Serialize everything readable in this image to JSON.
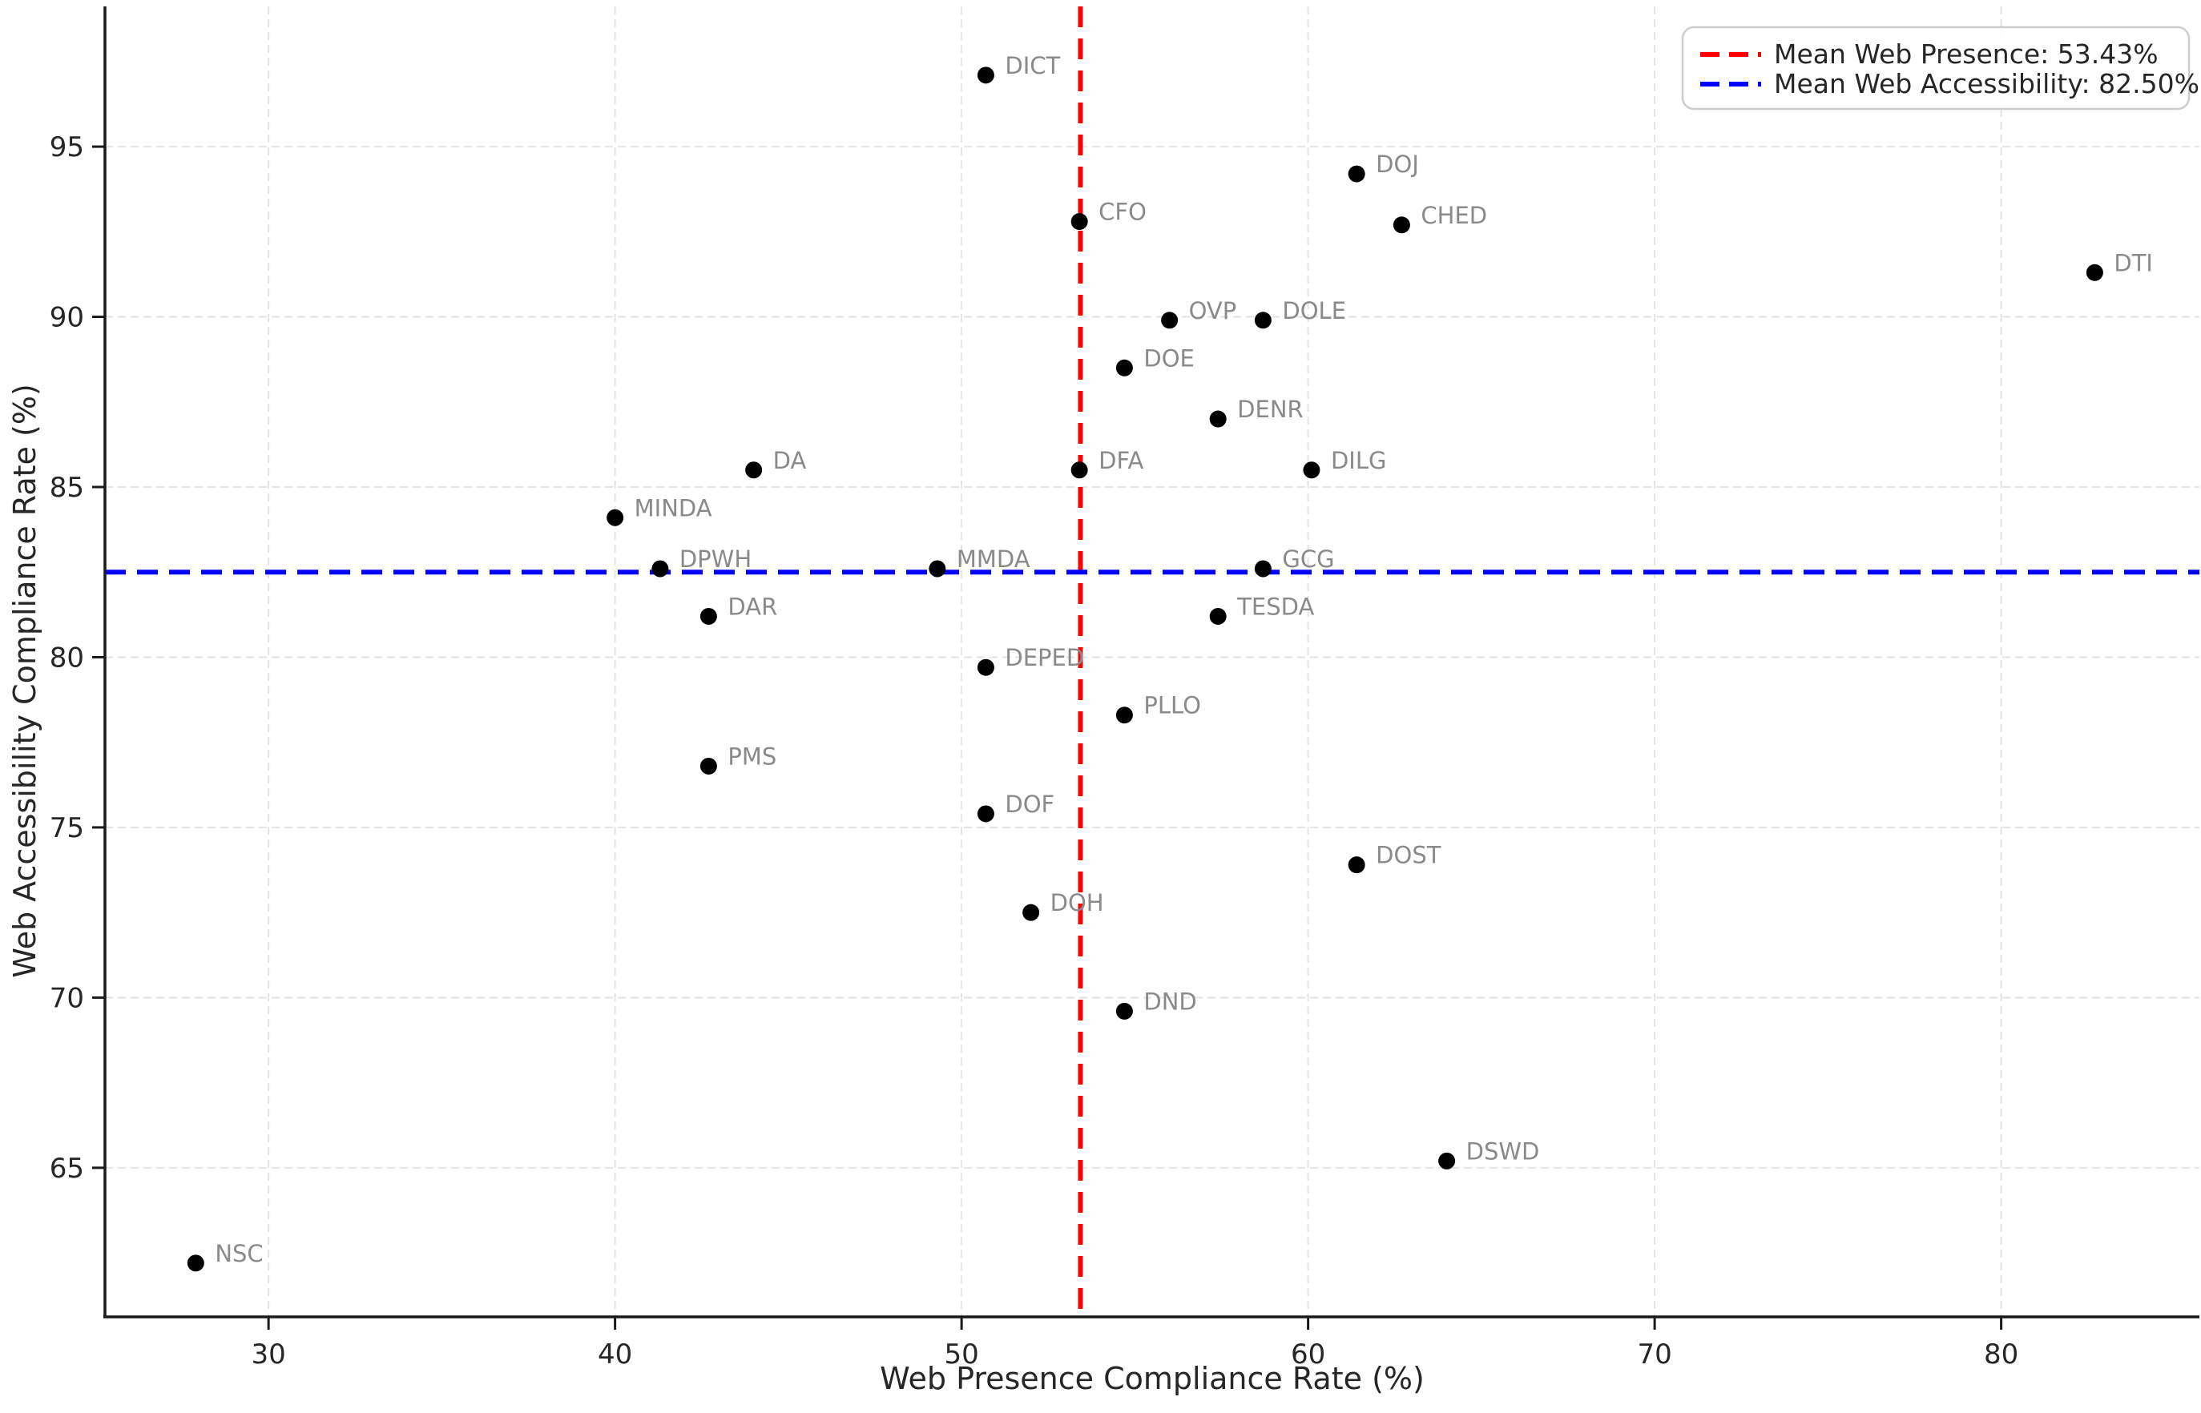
{
  "chart_data": {
    "type": "scatter",
    "title": "",
    "xlabel": "Web Presence Compliance Rate (%)",
    "ylabel": "Web Accessibility Compliance Rate (%)",
    "xlim": [
      25.28,
      85.72
    ],
    "ylim": [
      60.62,
      99.12
    ],
    "x_ticks": [
      30,
      40,
      50,
      60,
      70,
      80
    ],
    "y_ticks": [
      65,
      70,
      75,
      80,
      85,
      90,
      95
    ],
    "grid": true,
    "legend_position": "upper right",
    "points": [
      {
        "label": "DICT",
        "x": 50.7,
        "y": 97.1
      },
      {
        "label": "DOJ",
        "x": 61.4,
        "y": 94.2
      },
      {
        "label": "CFO",
        "x": 53.4,
        "y": 92.8
      },
      {
        "label": "CHED",
        "x": 62.7,
        "y": 92.7
      },
      {
        "label": "DTI",
        "x": 82.7,
        "y": 91.3
      },
      {
        "label": "OVP",
        "x": 56.0,
        "y": 89.9
      },
      {
        "label": "DOLE",
        "x": 58.7,
        "y": 89.9
      },
      {
        "label": "DOE",
        "x": 54.7,
        "y": 88.5
      },
      {
        "label": "DENR",
        "x": 57.4,
        "y": 87.0
      },
      {
        "label": "DA",
        "x": 44.0,
        "y": 85.5
      },
      {
        "label": "DFA",
        "x": 53.4,
        "y": 85.5
      },
      {
        "label": "DILG",
        "x": 60.1,
        "y": 85.5
      },
      {
        "label": "MINDA",
        "x": 40.0,
        "y": 84.1
      },
      {
        "label": "DPWH",
        "x": 41.3,
        "y": 82.6
      },
      {
        "label": "MMDA",
        "x": 49.3,
        "y": 82.6
      },
      {
        "label": "GCG",
        "x": 58.7,
        "y": 82.6
      },
      {
        "label": "DAR",
        "x": 42.7,
        "y": 81.2
      },
      {
        "label": "TESDA",
        "x": 57.4,
        "y": 81.2
      },
      {
        "label": "DEPED",
        "x": 50.7,
        "y": 79.7
      },
      {
        "label": "PLLO",
        "x": 54.7,
        "y": 78.3
      },
      {
        "label": "PMS",
        "x": 42.7,
        "y": 76.8
      },
      {
        "label": "DOF",
        "x": 50.7,
        "y": 75.4
      },
      {
        "label": "DOH",
        "x": 52.0,
        "y": 72.5
      },
      {
        "label": "DOST",
        "x": 61.4,
        "y": 73.9
      },
      {
        "label": "DND",
        "x": 54.7,
        "y": 69.6
      },
      {
        "label": "DSWD",
        "x": 64.0,
        "y": 65.2
      },
      {
        "label": "NSC",
        "x": 27.9,
        "y": 62.2
      }
    ],
    "mean_lines": {
      "vertical": {
        "value": 53.43,
        "label": "Mean Web Presence: 53.43%",
        "color": "#ff0000"
      },
      "horizontal": {
        "value": 82.5,
        "label": "Mean Web Accessibility: 82.50%",
        "color": "#0000ff"
      }
    },
    "colors": {
      "point": "#000000",
      "point_label": "#8a8a8a",
      "grid": "#e4e4e4",
      "spine": "#1a1a1a",
      "legend_border": "#cccccc"
    }
  }
}
